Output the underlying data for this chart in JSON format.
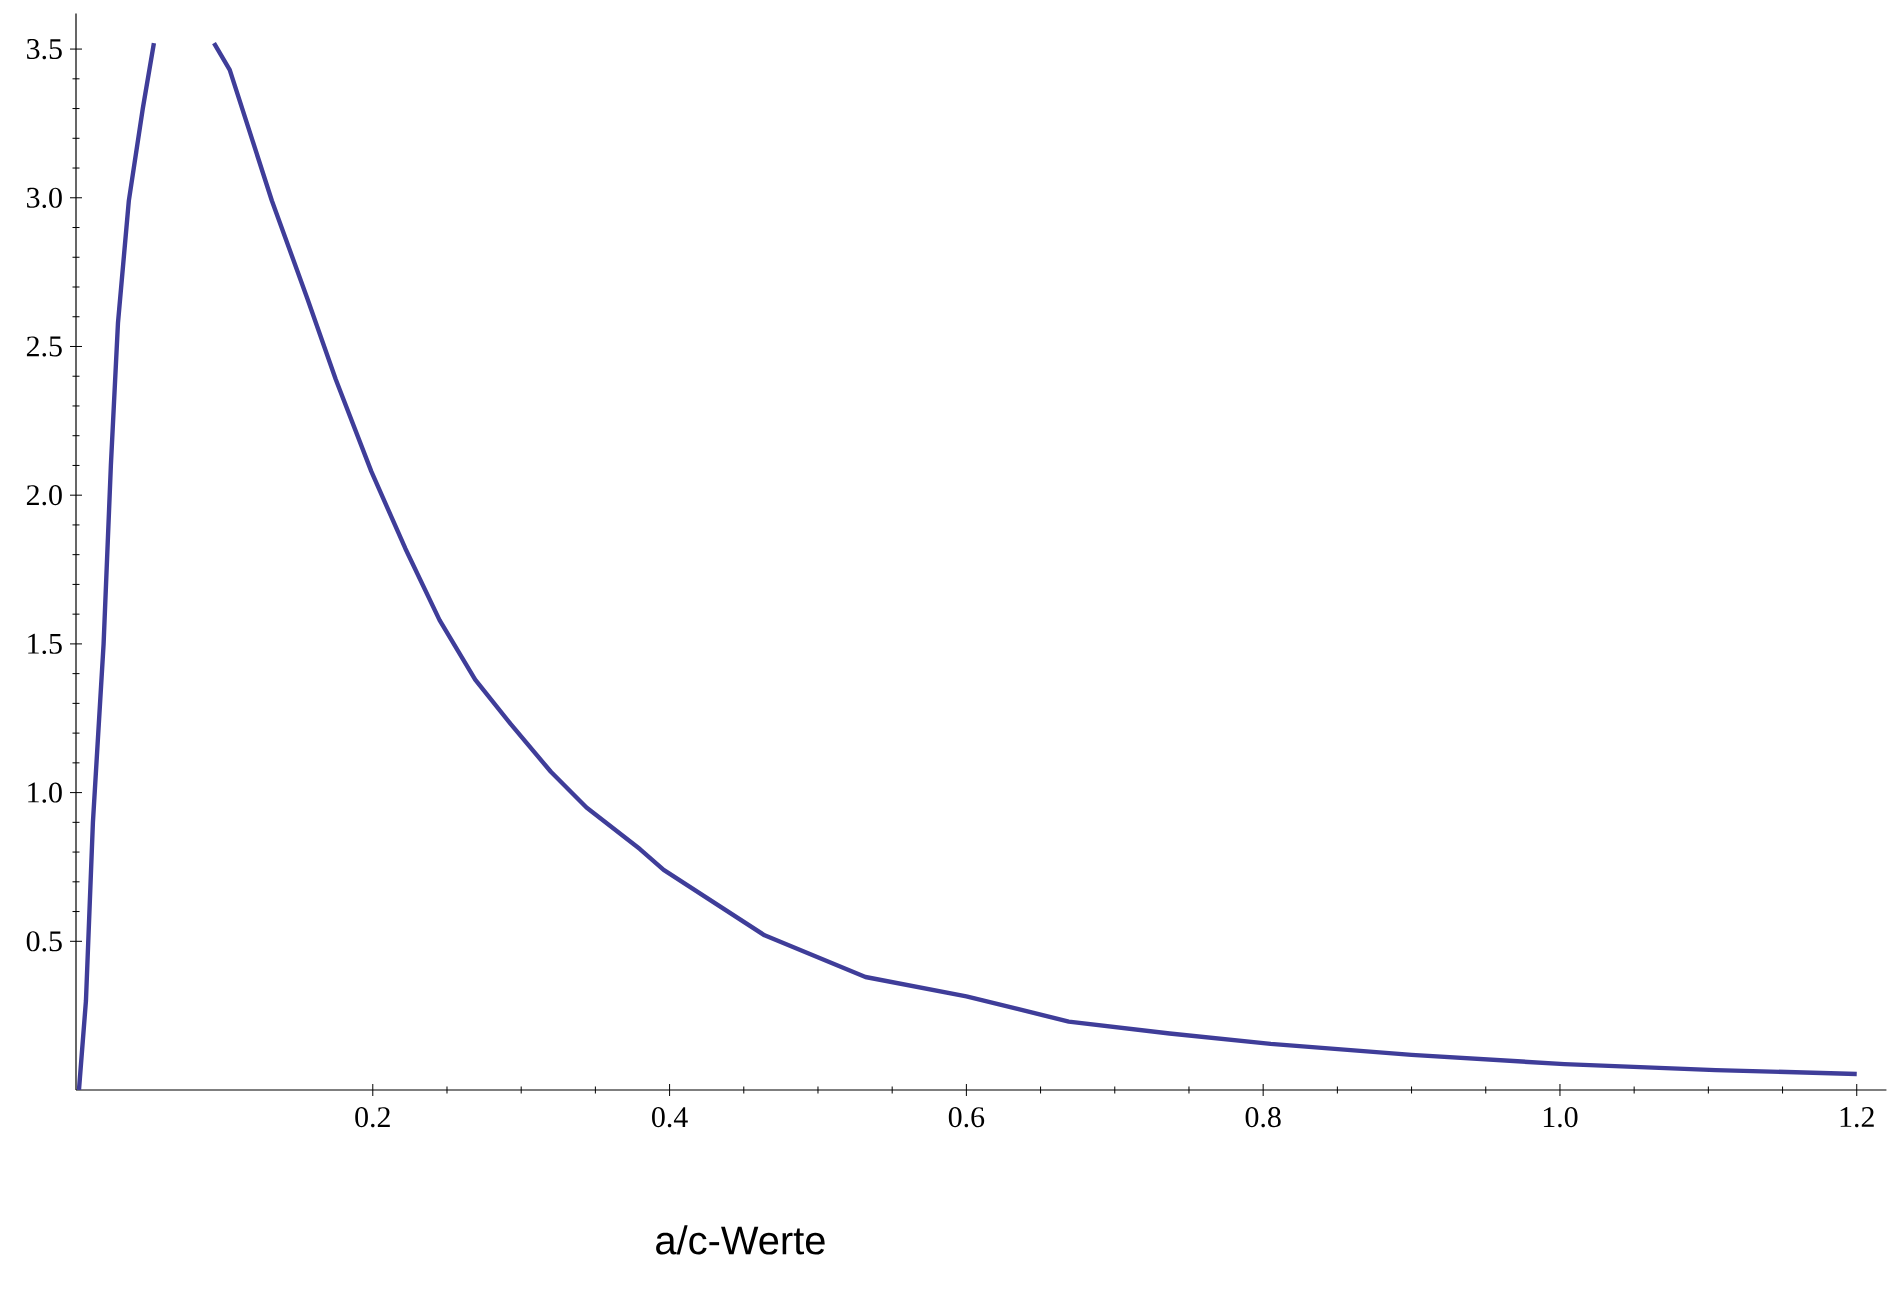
{
  "chart_data": {
    "type": "line",
    "xlabel": "a/c-Werte",
    "xlim": [
      0,
      1.22
    ],
    "ylim": [
      0,
      3.62
    ],
    "xticks": [
      0.2,
      0.4,
      0.6,
      0.8,
      {
        "value": 1,
        "label": "1.0"
      },
      1.2
    ],
    "yticks": [
      0.5,
      {
        "value": 1,
        "label": "1.0"
      },
      1.5,
      {
        "value": 2,
        "label": "2.0"
      },
      2.5,
      {
        "value": 3,
        "label": "3.0"
      },
      3.5
    ],
    "series": [
      {
        "color": "#3f3d99",
        "x": [
          0.002,
          0.0067,
          0.0114,
          0.0186,
          0.0235,
          0.0283,
          0.0356,
          0.045,
          0.0525,
          0.07,
          0.093,
          0.1036,
          0.132,
          0.156,
          0.175,
          0.199,
          0.222,
          0.245,
          0.269,
          0.293,
          0.32,
          0.344,
          0.38,
          0.396,
          0.464,
          0.532,
          0.6,
          0.669,
          0.737,
          0.805,
          0.9,
          1.003,
          1.105,
          1.2
        ],
        "values": [
          0,
          0.3,
          0.9,
          1.5,
          2.1,
          2.58,
          2.99,
          3.3,
          3.52,
          null,
          3.52,
          3.43,
          2.99,
          2.66,
          2.39,
          2.08,
          1.82,
          1.58,
          1.38,
          1.23,
          1.07,
          0.95,
          0.81,
          0.74,
          0.52,
          0.38,
          0.315,
          0.23,
          0.19,
          0.155,
          0.118,
          0.087,
          0.067,
          0.054
        ]
      }
    ]
  }
}
